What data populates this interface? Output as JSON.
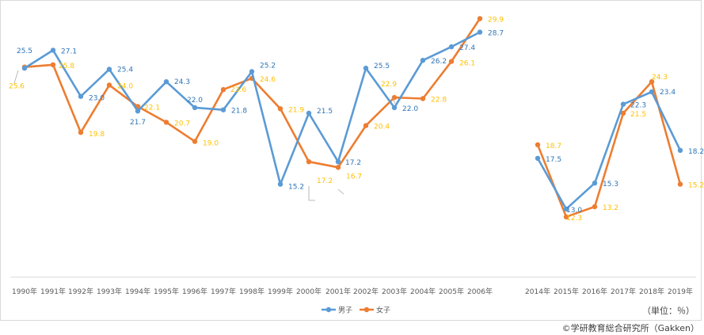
{
  "chart_data": {
    "type": "line",
    "categories": [
      "1990年",
      "1991年",
      "1992年",
      "1993年",
      "1994年",
      "1995年",
      "1996年",
      "1997年",
      "1998年",
      "1999年",
      "2000年",
      "2001年",
      "2002年",
      "2003年",
      "2004年",
      "2005年",
      "2006年",
      "2014年",
      "2015年",
      "2016年",
      "2017年",
      "2018年",
      "2019年"
    ],
    "series": [
      {
        "name": "男子",
        "color": "#5b9bd5",
        "values": [
          25.5,
          27.1,
          23.0,
          25.4,
          21.7,
          24.3,
          22.0,
          21.8,
          25.2,
          15.2,
          21.5,
          17.2,
          25.5,
          22.0,
          26.2,
          27.4,
          28.7,
          17.5,
          13.0,
          15.3,
          22.3,
          23.4,
          18.2
        ]
      },
      {
        "name": "女子",
        "color": "#ed7d31",
        "values": [
          25.6,
          25.8,
          19.8,
          24.0,
          22.1,
          20.7,
          19.0,
          23.6,
          24.6,
          21.9,
          17.2,
          16.7,
          20.4,
          22.9,
          22.8,
          26.1,
          29.9,
          18.7,
          12.3,
          13.2,
          21.5,
          24.3,
          15.2
        ]
      }
    ],
    "label_color_male": "#2e75b6",
    "label_color_female": "#ffc000",
    "ylim": [
      8,
      30.5
    ],
    "grid": false,
    "legend_position": "bottom"
  },
  "unit_label": "（単位：％）",
  "copyright": "©学研教育総合研究所（Gakken）"
}
